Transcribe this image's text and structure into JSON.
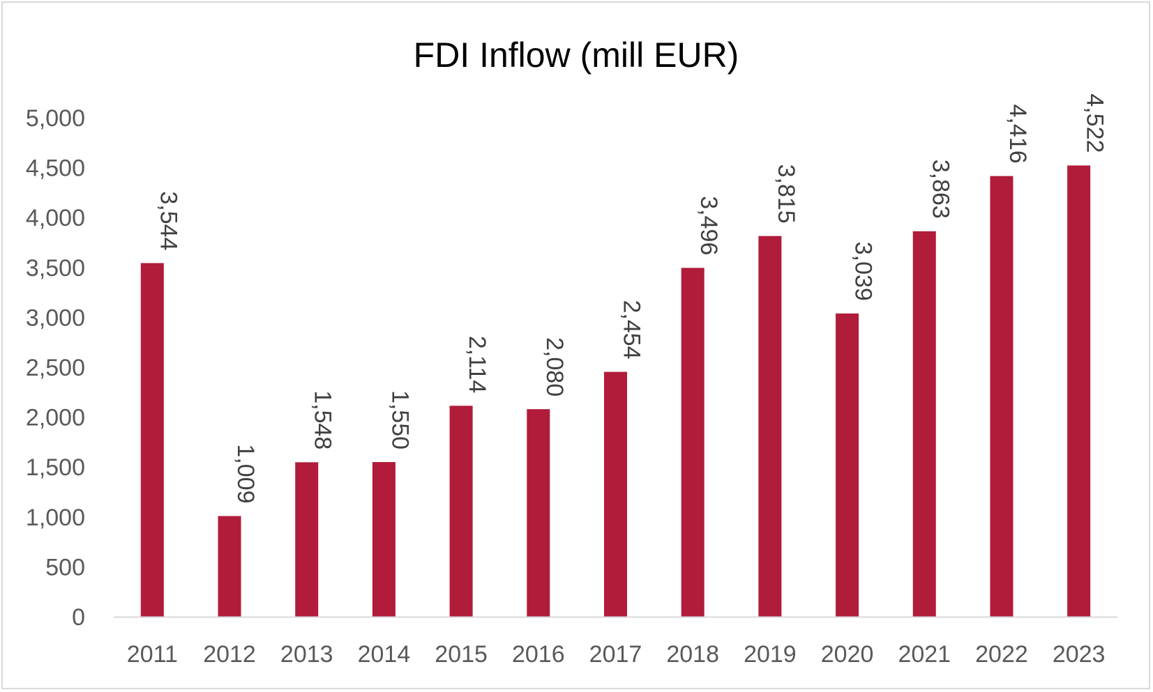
{
  "chart_data": {
    "type": "bar",
    "title": "FDI Inflow (mill EUR)",
    "xlabel": "",
    "ylabel": "",
    "categories": [
      "2011",
      "2012",
      "2013",
      "2014",
      "2015",
      "2016",
      "2017",
      "2018",
      "2019",
      "2020",
      "2021",
      "2022",
      "2023"
    ],
    "values": [
      3544,
      1009,
      1548,
      1550,
      2114,
      2080,
      2454,
      3496,
      3815,
      3039,
      3863,
      4416,
      4522
    ],
    "value_labels": [
      "3,544",
      "1,009",
      "1,548",
      "1,550",
      "2,114",
      "2,080",
      "2,454",
      "3,496",
      "3,815",
      "3,039",
      "3,863",
      "4,416",
      "4,522"
    ],
    "ylim": [
      0,
      5000
    ],
    "yticks": [
      0,
      500,
      1000,
      1500,
      2000,
      2500,
      3000,
      3500,
      4000,
      4500,
      5000
    ],
    "ytick_labels": [
      "0",
      "500",
      "1,000",
      "1,500",
      "2,000",
      "2,500",
      "3,000",
      "3,500",
      "4,000",
      "4,500",
      "5,000"
    ],
    "grid": false,
    "legend": "none",
    "bar_color": "#b01c3a",
    "axis_color": "#d9d9d9",
    "tick_label_color": "#595959",
    "data_label_color": "#404040",
    "data_label_rotation": "vertical"
  }
}
